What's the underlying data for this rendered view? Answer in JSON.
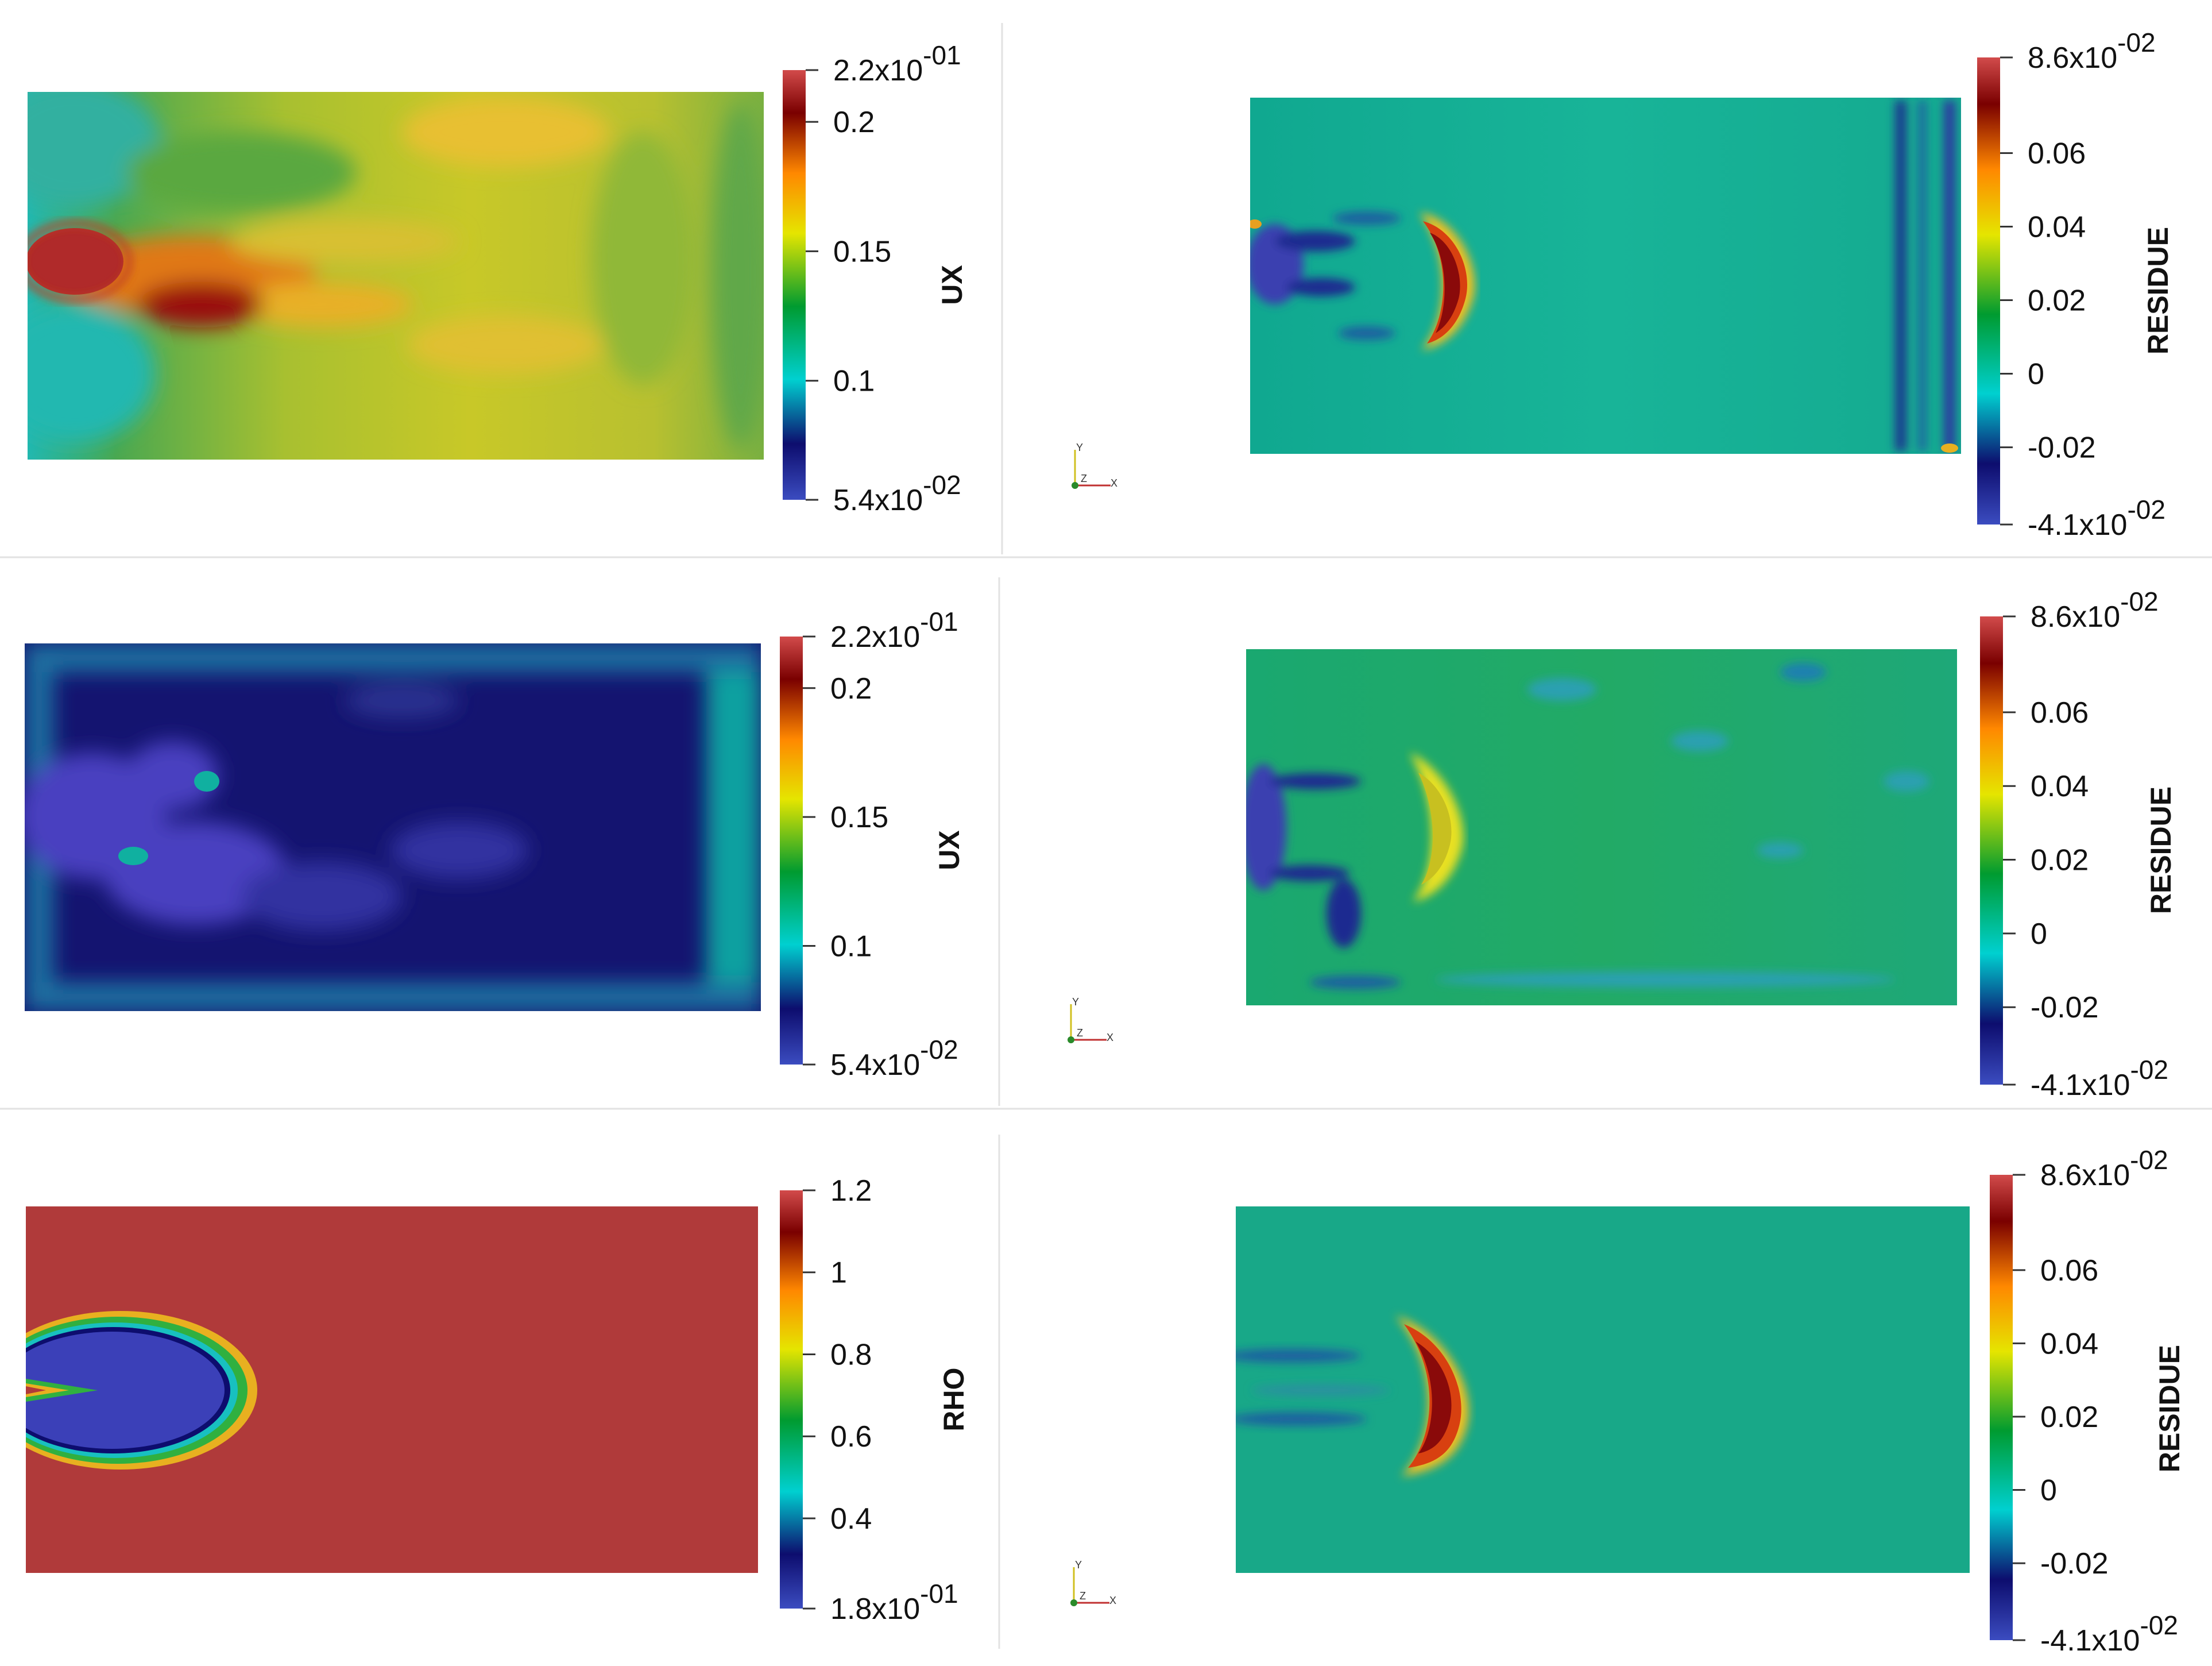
{
  "panels": [
    {
      "id": "r1-left",
      "field": "UX",
      "ticks": [
        {
          "v": 0.2,
          "t": "0.2"
        },
        {
          "v": 0.15,
          "t": "0.15"
        },
        {
          "v": 0.1,
          "t": "0.1"
        }
      ],
      "max": {
        "v": 0.22,
        "m": "2.2x10",
        "e": "-01"
      },
      "min": {
        "v": 0.054,
        "m": "5.4x10",
        "e": "-02"
      }
    },
    {
      "id": "r1-right",
      "field": "RESIDUE",
      "ticks": [
        {
          "v": 0.06,
          "t": "0.06"
        },
        {
          "v": 0.04,
          "t": "0.04"
        },
        {
          "v": 0.02,
          "t": "0.02"
        },
        {
          "v": 0,
          "t": "0"
        },
        {
          "v": -0.02,
          "t": "-0.02"
        }
      ],
      "max": {
        "v": 0.086,
        "m": "8.6x10",
        "e": "-02"
      },
      "min": {
        "v": -0.041,
        "m": "-4.1x10",
        "e": "-02"
      }
    },
    {
      "id": "r2-left",
      "field": "UX",
      "ticks": [
        {
          "v": 0.2,
          "t": "0.2"
        },
        {
          "v": 0.15,
          "t": "0.15"
        },
        {
          "v": 0.1,
          "t": "0.1"
        }
      ],
      "max": {
        "v": 0.22,
        "m": "2.2x10",
        "e": "-01"
      },
      "min": {
        "v": 0.054,
        "m": "5.4x10",
        "e": "-02"
      }
    },
    {
      "id": "r2-right",
      "field": "RESIDUE",
      "ticks": [
        {
          "v": 0.06,
          "t": "0.06"
        },
        {
          "v": 0.04,
          "t": "0.04"
        },
        {
          "v": 0.02,
          "t": "0.02"
        },
        {
          "v": 0,
          "t": "0"
        },
        {
          "v": -0.02,
          "t": "-0.02"
        }
      ],
      "max": {
        "v": 0.086,
        "m": "8.6x10",
        "e": "-02"
      },
      "min": {
        "v": -0.041,
        "m": "-4.1x10",
        "e": "-02"
      }
    },
    {
      "id": "r3-left",
      "field": "RHO",
      "ticks": [
        {
          "v": 1,
          "t": "1"
        },
        {
          "v": 0.8,
          "t": "0.8"
        },
        {
          "v": 0.6,
          "t": "0.6"
        },
        {
          "v": 0.4,
          "t": "0.4"
        }
      ],
      "max": {
        "v": 1.2,
        "m": "1.2",
        "e": ""
      },
      "min": {
        "v": 0.18,
        "m": "1.8x10",
        "e": "-01"
      }
    },
    {
      "id": "r3-right",
      "field": "RESIDUE",
      "ticks": [
        {
          "v": 0.06,
          "t": "0.06"
        },
        {
          "v": 0.04,
          "t": "0.04"
        },
        {
          "v": 0.02,
          "t": "0.02"
        },
        {
          "v": 0,
          "t": "0"
        },
        {
          "v": -0.02,
          "t": "-0.02"
        }
      ],
      "max": {
        "v": 0.086,
        "m": "8.6x10",
        "e": "-02"
      },
      "min": {
        "v": -0.041,
        "m": "-4.1x10",
        "e": "-02"
      }
    }
  ],
  "axes_labels": {
    "x": "X",
    "y": "Y",
    "z": "Z"
  },
  "colormap": [
    "#3b4cc0",
    "#0d0d6e",
    "#00d0d0",
    "#009b30",
    "#e5e500",
    "#ff8800",
    "#7a0000",
    "#d24b4b"
  ],
  "colors": {
    "plot_teal": "#18b89a",
    "plot_green": "#2aa870",
    "plot_navy": "#20208a",
    "plot_purple": "#5a4ac8",
    "plot_yellow": "#e0d020",
    "plot_red": "#b03a3a"
  }
}
